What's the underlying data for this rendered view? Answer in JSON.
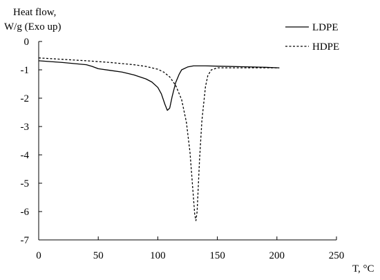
{
  "chart_data": {
    "type": "line",
    "ylabel_line1": "Heat flow,",
    "ylabel_line2": "W/g (Exo up)",
    "xlabel": "T, °C",
    "xlim": [
      0,
      250
    ],
    "ylim": [
      -7,
      0
    ],
    "x_ticks": [
      0,
      50,
      100,
      150,
      200,
      250
    ],
    "y_ticks": [
      0,
      -1,
      -2,
      -3,
      -4,
      -5,
      -6,
      -7
    ],
    "grid": false,
    "legend_position": "top-right",
    "series": [
      {
        "name": "LDPE",
        "style": "solid",
        "color": "#000000",
        "x": [
          0,
          20,
          40,
          45,
          50,
          60,
          70,
          80,
          90,
          95,
          100,
          103,
          106,
          108,
          110,
          112,
          115,
          118,
          120,
          125,
          130,
          135,
          140,
          150,
          160,
          170,
          180,
          190,
          202
        ],
        "y": [
          -0.68,
          -0.74,
          -0.82,
          -0.88,
          -0.96,
          -1.02,
          -1.08,
          -1.18,
          -1.32,
          -1.43,
          -1.62,
          -1.85,
          -2.22,
          -2.43,
          -2.35,
          -1.95,
          -1.45,
          -1.15,
          -1.0,
          -0.9,
          -0.86,
          -0.86,
          -0.86,
          -0.87,
          -0.88,
          -0.89,
          -0.9,
          -0.91,
          -0.93
        ]
      },
      {
        "name": "HDPE",
        "style": "dashed",
        "color": "#000000",
        "x": [
          0,
          20,
          40,
          60,
          80,
          90,
          100,
          105,
          110,
          115,
          120,
          124,
          127,
          129,
          131,
          132,
          133,
          134,
          135,
          137,
          140,
          142,
          145,
          150,
          160,
          170,
          180,
          190,
          202
        ],
        "y": [
          -0.58,
          -0.63,
          -0.68,
          -0.74,
          -0.82,
          -0.88,
          -0.98,
          -1.08,
          -1.25,
          -1.55,
          -2.05,
          -2.85,
          -3.9,
          -5.0,
          -6.1,
          -6.32,
          -6.0,
          -5.1,
          -4.2,
          -2.8,
          -1.6,
          -1.2,
          -1.0,
          -0.93,
          -0.93,
          -0.93,
          -0.93,
          -0.93,
          -0.93
        ]
      }
    ]
  }
}
